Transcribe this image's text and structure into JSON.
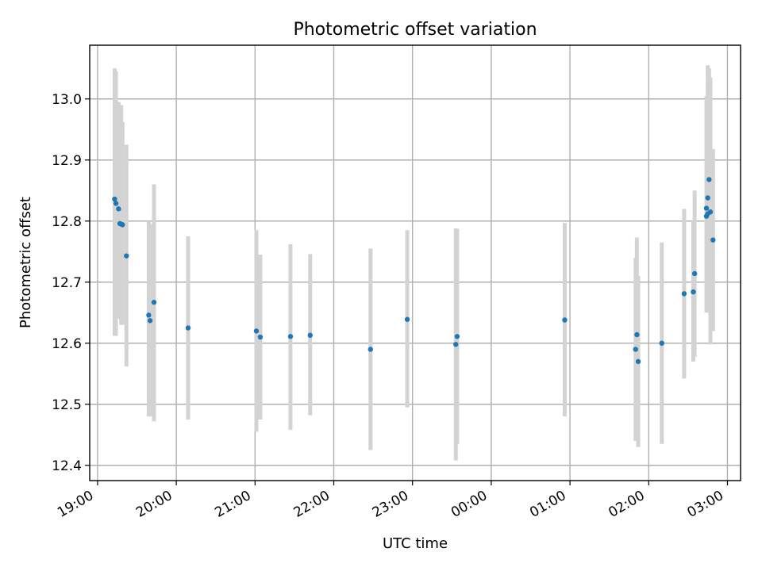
{
  "chart_data": {
    "type": "scatter",
    "title": "Photometric offset variation",
    "xlabel": "UTC time",
    "ylabel": "Photometric offset",
    "x_unit": "UTC time of night (19:00 to 03:00 next day)",
    "xlim": [
      "18:54",
      "03:10"
    ],
    "ylim": [
      12.375,
      13.088
    ],
    "grid": true,
    "x_ticks": [
      "19:00",
      "20:00",
      "21:00",
      "22:00",
      "23:00",
      "00:00",
      "01:00",
      "02:00",
      "03:00"
    ],
    "y_ticks": [
      "12.4",
      "12.5",
      "12.6",
      "12.7",
      "12.8",
      "12.9",
      "13.0"
    ],
    "colors": {
      "points": "#1f77b4",
      "error_bars": "#d3d3d3",
      "grid": "#b0b0b0"
    },
    "series": [
      {
        "points": [
          {
            "x": "19:13",
            "y": 12.836,
            "err_low": 12.612,
            "err_high": 13.05
          },
          {
            "x": "19:14",
            "y": 12.829,
            "err_low": 12.612,
            "err_high": 13.045
          },
          {
            "x": "19:16",
            "y": 12.82,
            "err_low": 12.64,
            "err_high": 12.995
          },
          {
            "x": "19:17",
            "y": 12.796,
            "err_low": 12.64,
            "err_high": 12.99
          },
          {
            "x": "19:18",
            "y": 12.795,
            "err_low": 12.63,
            "err_high": 12.99
          },
          {
            "x": "19:19",
            "y": 12.794,
            "err_low": 12.63,
            "err_high": 12.962
          },
          {
            "x": "19:22",
            "y": 12.743,
            "err_low": 12.562,
            "err_high": 12.925
          },
          {
            "x": "19:39",
            "y": 12.646,
            "err_low": 12.48,
            "err_high": 12.8
          },
          {
            "x": "19:40",
            "y": 12.637,
            "err_low": 12.48,
            "err_high": 12.795
          },
          {
            "x": "19:43",
            "y": 12.667,
            "err_low": 12.472,
            "err_high": 12.86
          },
          {
            "x": "20:09",
            "y": 12.625,
            "err_low": 12.475,
            "err_high": 12.775
          },
          {
            "x": "21:01",
            "y": 12.62,
            "err_low": 12.455,
            "err_high": 12.785
          },
          {
            "x": "21:04",
            "y": 12.61,
            "err_low": 12.475,
            "err_high": 12.745
          },
          {
            "x": "21:27",
            "y": 12.611,
            "err_low": 12.458,
            "err_high": 12.762
          },
          {
            "x": "21:42",
            "y": 12.613,
            "err_low": 12.482,
            "err_high": 12.746
          },
          {
            "x": "22:28",
            "y": 12.59,
            "err_low": 12.425,
            "err_high": 12.755
          },
          {
            "x": "22:56",
            "y": 12.639,
            "err_low": 12.495,
            "err_high": 12.785
          },
          {
            "x": "23:33",
            "y": 12.598,
            "err_low": 12.408,
            "err_high": 12.788
          },
          {
            "x": "23:34",
            "y": 12.611,
            "err_low": 12.435,
            "err_high": 12.787
          },
          {
            "x": "00:56",
            "y": 12.638,
            "err_low": 12.48,
            "err_high": 12.797
          },
          {
            "x": "01:50",
            "y": 12.59,
            "err_low": 12.44,
            "err_high": 12.74
          },
          {
            "x": "01:51",
            "y": 12.614,
            "err_low": 12.455,
            "err_high": 12.773
          },
          {
            "x": "01:52",
            "y": 12.57,
            "err_low": 12.43,
            "err_high": 12.71
          },
          {
            "x": "02:10",
            "y": 12.6,
            "err_low": 12.435,
            "err_high": 12.765
          },
          {
            "x": "02:27",
            "y": 12.681,
            "err_low": 12.542,
            "err_high": 12.82
          },
          {
            "x": "02:34",
            "y": 12.684,
            "err_low": 12.57,
            "err_high": 12.8
          },
          {
            "x": "02:35",
            "y": 12.714,
            "err_low": 12.578,
            "err_high": 12.85
          },
          {
            "x": "02:44",
            "y": 12.808,
            "err_low": 12.65,
            "err_high": 12.985
          },
          {
            "x": "02:44",
            "y": 12.821,
            "err_low": 12.66,
            "err_high": 13.005
          },
          {
            "x": "02:45",
            "y": 12.812,
            "err_low": 12.68,
            "err_high": 13.02
          },
          {
            "x": "02:45",
            "y": 12.838,
            "err_low": 12.7,
            "err_high": 13.055
          },
          {
            "x": "02:46",
            "y": 12.868,
            "err_low": 12.7,
            "err_high": 13.05
          },
          {
            "x": "02:47",
            "y": 12.815,
            "err_low": 12.598,
            "err_high": 13.035
          },
          {
            "x": "02:49",
            "y": 12.769,
            "err_low": 12.62,
            "err_high": 12.918
          }
        ]
      }
    ]
  }
}
